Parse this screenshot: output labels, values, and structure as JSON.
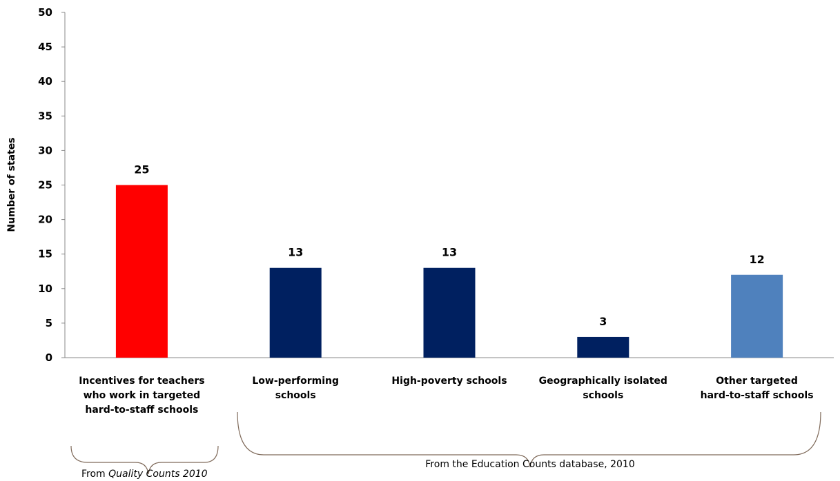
{
  "chart_data": {
    "type": "bar",
    "ylabel": "Number of states",
    "ylim": [
      0,
      50
    ],
    "yticks": [
      0,
      5,
      10,
      15,
      20,
      25,
      30,
      35,
      40,
      45,
      50
    ],
    "categories": [
      [
        "Incentives for teachers",
        "who work in targeted",
        "hard-to-staff schools"
      ],
      [
        "Low-performing",
        "schools"
      ],
      [
        "High-poverty schools"
      ],
      [
        "Geographically isolated",
        "schools"
      ],
      [
        "Other targeted",
        "hard-to-staff schools"
      ]
    ],
    "values": [
      25,
      13,
      13,
      3,
      12
    ],
    "data_labels": [
      "25",
      "13",
      "13",
      "3",
      "12"
    ],
    "colors": [
      "#ff0000",
      "#002060",
      "#002060",
      "#002060",
      "#4f81bd"
    ],
    "grid": false
  },
  "groups": [
    {
      "prefix": "From ",
      "source": "Quality Counts 2010",
      "suffix": ""
    },
    {
      "prefix": "",
      "source": "From the Education Counts database, 2010",
      "suffix": ""
    }
  ]
}
